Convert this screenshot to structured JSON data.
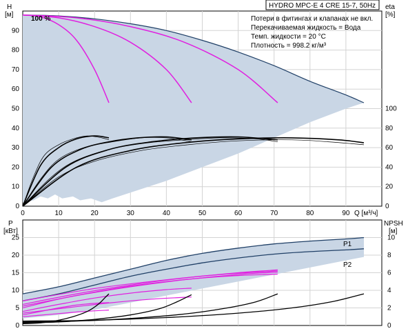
{
  "header": {
    "title": "HYDRO MPC-E 4 CRE 15-7, 50Hz",
    "notes": [
      "Потери в фитингах и клапанах не вкл.",
      "Перекачиваемая жидкость = Вода",
      "Темп. жидкости = 20 °C",
      "Плотность = 998.2 кг/м³"
    ]
  },
  "colors": {
    "envelope_fill": "#c9d6e5",
    "envelope_edge": "#1f3f66",
    "speed_curve": "#e020e0",
    "efficiency_curve": "#000000"
  },
  "chart_data": [
    {
      "type": "line",
      "name": "head",
      "xlim": [
        0,
        100
      ],
      "ylim": [
        0,
        100
      ],
      "xlabel": "Q [м³/ч]",
      "ylabel_left": [
        "H",
        "[м]"
      ],
      "ylabel_right": [
        "eta",
        "[%]"
      ],
      "xticks": [
        0,
        10,
        20,
        30,
        40,
        50,
        60,
        70,
        80,
        90
      ],
      "yticks": [
        0,
        10,
        20,
        30,
        40,
        50,
        60,
        70,
        80,
        90
      ],
      "eta_ticks": [
        0,
        20,
        40,
        60,
        80,
        100
      ],
      "eta_scale": {
        "eta_0_at_H": 0,
        "eta_100_at_H": 50
      },
      "label_100": "100 %",
      "envelope_top": [
        [
          0,
          98
        ],
        [
          10,
          97.5
        ],
        [
          20,
          96
        ],
        [
          30,
          93.5
        ],
        [
          40,
          90
        ],
        [
          50,
          85
        ],
        [
          60,
          79
        ],
        [
          70,
          72
        ],
        [
          80,
          64
        ],
        [
          90,
          57
        ],
        [
          95,
          53
        ]
      ],
      "envelope_bottom": [
        [
          0,
          2
        ],
        [
          3,
          3
        ],
        [
          5,
          5
        ],
        [
          7,
          4
        ],
        [
          9,
          6
        ],
        [
          11,
          4
        ],
        [
          14,
          5
        ],
        [
          16,
          3
        ],
        [
          19,
          4
        ],
        [
          22,
          2
        ],
        [
          25,
          4
        ],
        [
          30,
          7
        ],
        [
          40,
          13
        ],
        [
          50,
          20
        ],
        [
          60,
          27
        ],
        [
          70,
          35
        ],
        [
          80,
          43
        ],
        [
          90,
          50
        ],
        [
          95,
          53
        ]
      ],
      "series": [
        {
          "values": [
            [
              0,
              98
            ],
            [
              5,
              97
            ],
            [
              10,
              93
            ],
            [
              15,
              85
            ],
            [
              20,
              70
            ],
            [
              24,
              53
            ]
          ]
        },
        {
          "values": [
            [
              0,
              98
            ],
            [
              10,
              96.5
            ],
            [
              20,
              92
            ],
            [
              30,
              84
            ],
            [
              40,
              70
            ],
            [
              47,
              53
            ]
          ]
        },
        {
          "values": [
            [
              0,
              98
            ],
            [
              15,
              96.5
            ],
            [
              30,
              92
            ],
            [
              45,
              84
            ],
            [
              60,
              70
            ],
            [
              71,
              53
            ]
          ]
        },
        {
          "values": [
            [
              0,
              98
            ],
            [
              20,
              96.5
            ],
            [
              40,
              92
            ],
            [
              60,
              84
            ],
            [
              80,
              70
            ],
            [
              95,
              53
            ]
          ]
        }
      ],
      "eta_series": [
        {
          "values": [
            [
              0,
              0
            ],
            [
              3,
              30
            ],
            [
              6,
              52
            ],
            [
              10,
              63
            ],
            [
              14,
              69
            ],
            [
              18,
              72
            ],
            [
              22,
              70
            ],
            [
              24,
              68
            ]
          ]
        },
        {
          "values": [
            [
              0,
              0
            ],
            [
              5,
              28
            ],
            [
              10,
              48
            ],
            [
              17,
              60
            ],
            [
              25,
              66
            ],
            [
              33,
              70
            ],
            [
              40,
              70
            ],
            [
              47,
              66
            ]
          ]
        },
        {
          "values": [
            [
              0,
              0
            ],
            [
              8,
              30
            ],
            [
              15,
              47
            ],
            [
              25,
              59
            ],
            [
              35,
              65
            ],
            [
              45,
              68
            ],
            [
              55,
              70
            ],
            [
              65,
              69
            ],
            [
              71,
              66
            ]
          ]
        },
        {
          "values": [
            [
              0,
              0
            ],
            [
              10,
              30
            ],
            [
              20,
              46
            ],
            [
              33,
              57
            ],
            [
              46,
              63
            ],
            [
              60,
              67
            ],
            [
              75,
              68
            ],
            [
              85,
              66
            ],
            [
              95,
              63
            ]
          ]
        },
        {
          "values": [
            [
              0,
              0
            ],
            [
              5,
              42
            ],
            [
              10,
              60
            ],
            [
              15,
              69
            ],
            [
              20,
              72
            ],
            [
              24,
              70
            ]
          ]
        },
        {
          "values": [
            [
              0,
              0
            ],
            [
              8,
              40
            ],
            [
              16,
              58
            ],
            [
              24,
              66
            ],
            [
              32,
              70
            ],
            [
              40,
              71
            ],
            [
              47,
              68
            ]
          ]
        },
        {
          "values": [
            [
              0,
              0
            ],
            [
              12,
              40
            ],
            [
              24,
              58
            ],
            [
              36,
              66
            ],
            [
              48,
              70
            ],
            [
              60,
              71
            ],
            [
              71,
              68
            ]
          ]
        },
        {
          "values": [
            [
              0,
              0
            ],
            [
              15,
              40
            ],
            [
              30,
              57
            ],
            [
              45,
              65
            ],
            [
              60,
              69
            ],
            [
              75,
              70
            ],
            [
              88,
              68
            ],
            [
              95,
              65
            ]
          ]
        }
      ]
    },
    {
      "type": "line",
      "name": "power",
      "xlim": [
        0,
        100
      ],
      "ylim": [
        0,
        30
      ],
      "ylabel_left": [
        "P",
        "[кВт]"
      ],
      "ylabel_right": [
        "NPSH",
        "[м]"
      ],
      "yticks": [
        0,
        5,
        10,
        15,
        20,
        25
      ],
      "npsh_ticks": [
        0,
        2,
        4,
        6,
        8,
        10
      ],
      "npsh_scale": {
        "npsh_0_at_P": 0,
        "npsh_10_at_P": 25
      },
      "series_labels": [
        "P1",
        "P2"
      ],
      "envelope_top": [
        [
          0,
          9
        ],
        [
          10,
          11
        ],
        [
          20,
          13.5
        ],
        [
          30,
          16
        ],
        [
          40,
          18.5
        ],
        [
          50,
          20.5
        ],
        [
          60,
          22
        ],
        [
          70,
          23.2
        ],
        [
          80,
          24
        ],
        [
          90,
          24.6
        ],
        [
          95,
          25
        ]
      ],
      "envelope_bottom": [
        [
          0,
          2
        ],
        [
          10,
          3
        ],
        [
          20,
          4.5
        ],
        [
          30,
          6.5
        ],
        [
          40,
          8.5
        ],
        [
          50,
          10.5
        ],
        [
          60,
          12.5
        ],
        [
          70,
          14.5
        ],
        [
          80,
          16.5
        ],
        [
          90,
          18.5
        ],
        [
          95,
          19.5
        ]
      ],
      "p1": [
        [
          0,
          9
        ],
        [
          10,
          11
        ],
        [
          20,
          13.5
        ],
        [
          30,
          16
        ],
        [
          40,
          18.5
        ],
        [
          50,
          20.5
        ],
        [
          60,
          22
        ],
        [
          70,
          23.2
        ],
        [
          80,
          24
        ],
        [
          90,
          24.6
        ],
        [
          95,
          25
        ]
      ],
      "p2": [
        [
          0,
          7
        ],
        [
          10,
          9
        ],
        [
          20,
          11.5
        ],
        [
          30,
          14
        ],
        [
          40,
          16
        ],
        [
          50,
          17.8
        ],
        [
          60,
          19.2
        ],
        [
          70,
          20.3
        ],
        [
          80,
          21
        ],
        [
          90,
          21.5
        ],
        [
          95,
          21.8
        ]
      ],
      "speed_series": [
        {
          "values": [
            [
              0,
              3
            ],
            [
              5,
              4
            ],
            [
              10,
              5
            ],
            [
              15,
              5.8
            ],
            [
              20,
              6.3
            ],
            [
              24,
              6.5
            ]
          ]
        },
        {
          "values": [
            [
              0,
              4
            ],
            [
              10,
              6
            ],
            [
              20,
              7.8
            ],
            [
              30,
              9.2
            ],
            [
              40,
              10.2
            ],
            [
              47,
              10.6
            ]
          ]
        },
        {
          "values": [
            [
              0,
              5
            ],
            [
              10,
              7.5
            ],
            [
              20,
              9.5
            ],
            [
              30,
              11.2
            ],
            [
              40,
              12.5
            ],
            [
              50,
              13.5
            ],
            [
              60,
              14.2
            ],
            [
              71,
              14.6
            ]
          ]
        },
        {
          "values": [
            [
              0,
              6
            ],
            [
              15,
              9
            ],
            [
              30,
              11.5
            ],
            [
              45,
              13.5
            ],
            [
              60,
              15
            ],
            [
              71,
              15.8
            ]
          ]
        },
        {
          "values": [
            [
              0,
              2.5
            ],
            [
              8,
              3.2
            ],
            [
              16,
              3.9
            ],
            [
              24,
              4.4
            ]
          ]
        },
        {
          "values": [
            [
              0,
              3.5
            ],
            [
              12,
              5
            ],
            [
              24,
              6.4
            ],
            [
              36,
              7.5
            ],
            [
              47,
              8.1
            ]
          ]
        },
        {
          "values": [
            [
              0,
              5.5
            ],
            [
              15,
              8.5
            ],
            [
              30,
              11
            ],
            [
              45,
              13
            ],
            [
              60,
              14.5
            ],
            [
              71,
              15.2
            ]
          ]
        },
        {
          "values": [
            [
              0,
              7
            ],
            [
              20,
              10.5
            ],
            [
              40,
              13
            ],
            [
              55,
              14.5
            ],
            [
              71,
              15.5
            ]
          ]
        }
      ],
      "npsh_series": [
        {
          "values": [
            [
              0,
              0.2
            ],
            [
              5,
              0.3
            ],
            [
              10,
              0.6
            ],
            [
              14,
              1
            ],
            [
              18,
              1.6
            ],
            [
              21,
              2.4
            ],
            [
              23,
              3.2
            ],
            [
              24,
              3.6
            ]
          ]
        },
        {
          "values": [
            [
              0,
              0.3
            ],
            [
              10,
              0.4
            ],
            [
              20,
              0.7
            ],
            [
              30,
              1.2
            ],
            [
              38,
              1.9
            ],
            [
              43,
              2.7
            ],
            [
              47,
              3.5
            ]
          ]
        },
        {
          "values": [
            [
              0,
              0.4
            ],
            [
              15,
              0.5
            ],
            [
              30,
              0.8
            ],
            [
              45,
              1.3
            ],
            [
              57,
              2
            ],
            [
              65,
              2.7
            ],
            [
              71,
              3.6
            ]
          ]
        },
        {
          "values": [
            [
              0,
              0.5
            ],
            [
              20,
              0.6
            ],
            [
              40,
              0.9
            ],
            [
              60,
              1.4
            ],
            [
              75,
              2
            ],
            [
              86,
              2.7
            ],
            [
              95,
              3.6
            ]
          ]
        }
      ]
    }
  ]
}
